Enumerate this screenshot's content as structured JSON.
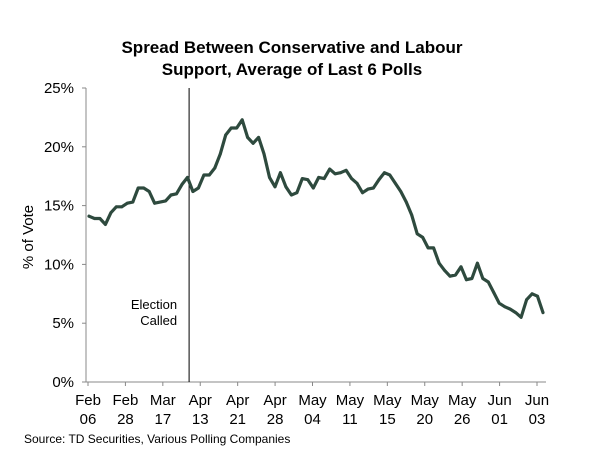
{
  "chart_data": {
    "type": "line",
    "title": [
      "Spread Between Conservative and Labour",
      "Support, Average of Last 6 Polls"
    ],
    "ylabel": "% of Vote",
    "ylim": [
      0,
      25
    ],
    "yticks": [
      "0%",
      "5%",
      "10%",
      "15%",
      "20%",
      "25%"
    ],
    "yunit": "%",
    "x_tick_labels": [
      [
        "Feb",
        "06"
      ],
      [
        "Feb",
        "28"
      ],
      [
        "Mar",
        "17"
      ],
      [
        "Apr",
        "13"
      ],
      [
        "Apr",
        "21"
      ],
      [
        "Apr",
        "28"
      ],
      [
        "May",
        "04"
      ],
      [
        "May",
        "11"
      ],
      [
        "May",
        "15"
      ],
      [
        "May",
        "20"
      ],
      [
        "May",
        "26"
      ],
      [
        "Jun",
        "01"
      ],
      [
        "Jun",
        "03"
      ]
    ],
    "grid": false,
    "series_color": "#2e4a3e",
    "series": [
      {
        "values": [
          14.1,
          13.9,
          13.9,
          13.4,
          14.4,
          14.9,
          14.9,
          15.2,
          15.3,
          16.5,
          16.5,
          16.2,
          15.2,
          15.3,
          15.4,
          15.9,
          16.0,
          16.8,
          17.4,
          16.2,
          16.5,
          17.6,
          17.6,
          18.2,
          19.4,
          21.0,
          21.6,
          21.6,
          22.3,
          20.8,
          20.3,
          20.8,
          19.4,
          17.4,
          16.6,
          17.8,
          16.6,
          15.9,
          16.1,
          17.3,
          17.2,
          16.5,
          17.4,
          17.3,
          18.1,
          17.7,
          17.8,
          18.0,
          17.3,
          16.9,
          16.1,
          16.4,
          16.5,
          17.2,
          17.8,
          17.6,
          16.9,
          16.2,
          15.3,
          14.2,
          12.6,
          12.3,
          11.4,
          11.4,
          10.1,
          9.5,
          9.0,
          9.1,
          9.8,
          8.7,
          8.8,
          10.1,
          8.8,
          8.5,
          7.6,
          6.7,
          6.4,
          6.2,
          5.9,
          5.5,
          7.0,
          7.5,
          7.3,
          5.9
        ]
      }
    ],
    "annotations": [
      {
        "text": [
          "Election",
          "Called"
        ],
        "x_index": 18.3
      }
    ]
  },
  "source": "Source: TD Securities, Various Polling Companies"
}
